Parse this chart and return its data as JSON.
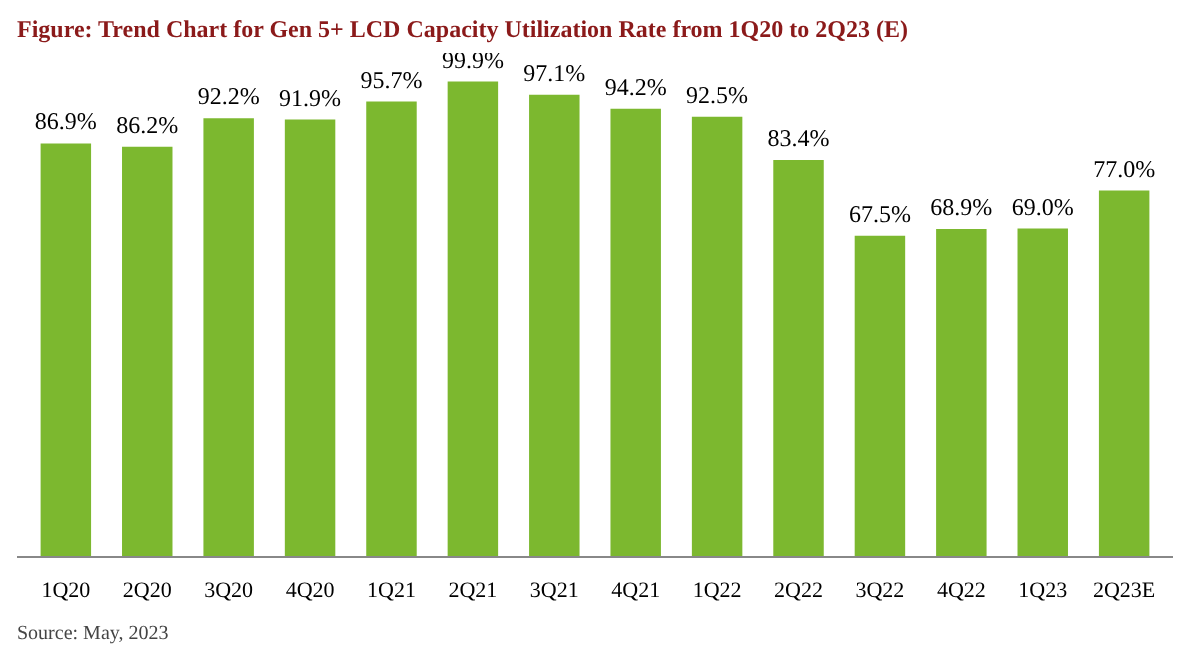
{
  "chart_data": {
    "type": "bar",
    "title": "Figure: Trend Chart for Gen 5+ LCD Capacity Utilization Rate from 1Q20 to 2Q23 (E)",
    "categories": [
      "1Q20",
      "2Q20",
      "3Q20",
      "4Q20",
      "1Q21",
      "2Q21",
      "3Q21",
      "4Q21",
      "1Q22",
      "2Q22",
      "3Q22",
      "4Q22",
      "1Q23",
      "2Q23E"
    ],
    "values": [
      86.9,
      86.2,
      92.2,
      91.9,
      95.7,
      99.9,
      97.1,
      94.2,
      92.5,
      83.4,
      67.5,
      68.9,
      69.0,
      77.0
    ],
    "value_labels": [
      "86.9%",
      "86.2%",
      "92.2%",
      "91.9%",
      "95.7%",
      "99.9%",
      "97.1%",
      "94.2%",
      "92.5%",
      "83.4%",
      "67.5%",
      "68.9%",
      "69.0%",
      "77.0%"
    ],
    "color": "#7cb82f",
    "tick_labels": "x",
    "grid": false,
    "annotations": [
      "Source: May, 2023"
    ]
  }
}
